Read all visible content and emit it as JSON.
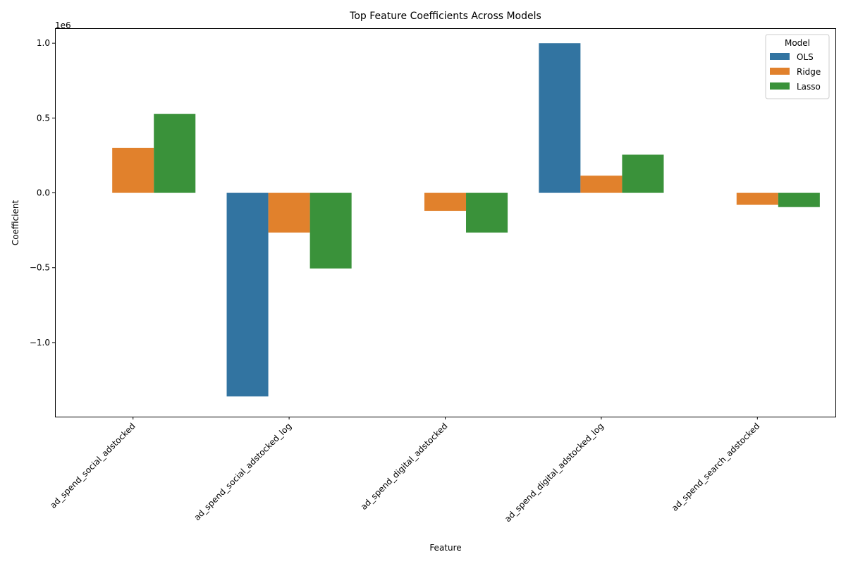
{
  "chart_data": {
    "type": "bar",
    "title": "Top Feature Coefficients Across Models",
    "xlabel": "Feature",
    "ylabel": "Coefficient",
    "offset_label": "1e6",
    "categories": [
      "ad_spend_social_adstocked",
      "ad_spend_social_adstocked_log",
      "ad_spend_digital_adstocked",
      "ad_spend_digital_adstocked_log",
      "ad_spend_search_adstocked"
    ],
    "series": [
      {
        "name": "OLS",
        "color": "#3274a1",
        "values": [
          0,
          -1360000,
          0,
          1000000,
          0
        ]
      },
      {
        "name": "Ridge",
        "color": "#e1812c",
        "values": [
          300000,
          -265000,
          -120000,
          115000,
          -80000
        ]
      },
      {
        "name": "Lasso",
        "color": "#3a923a",
        "values": [
          527000,
          -505000,
          -265000,
          255000,
          -95000
        ]
      }
    ],
    "yticks": [
      -1000000,
      -500000,
      0,
      500000,
      1000000
    ],
    "ytick_labels": [
      "−1.0",
      "−0.5",
      "0.0",
      "0.5",
      "1.0"
    ],
    "ylim": [
      -1495000,
      1100000
    ],
    "legend": {
      "title": "Model",
      "placement": "top-right"
    },
    "grid": false
  }
}
